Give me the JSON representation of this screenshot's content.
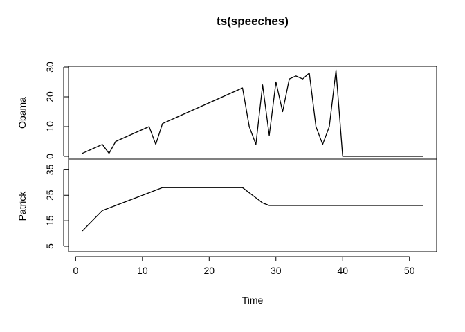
{
  "chart_data": {
    "type": "line",
    "title": "ts(speeches)",
    "xlabel": "Time",
    "xlim": [
      1,
      52
    ],
    "x_ticks": [
      0,
      10,
      20,
      30,
      40,
      50
    ],
    "x": [
      1,
      4,
      5,
      6,
      11,
      12,
      13,
      25,
      26,
      27,
      28,
      29,
      30,
      31,
      32,
      33,
      34,
      35,
      36,
      37,
      38,
      39,
      40,
      41,
      42,
      43,
      44,
      45,
      46,
      47,
      51,
      52
    ],
    "series": [
      {
        "name": "Obama",
        "ylim": [
          0,
          30
        ],
        "y_ticks": [
          0,
          10,
          20,
          30
        ],
        "values": [
          1,
          4,
          1,
          5,
          10,
          4,
          11,
          23,
          10,
          4,
          24,
          7,
          25,
          15,
          26,
          27,
          26,
          28,
          10,
          4,
          10,
          29,
          0,
          0,
          0,
          0,
          0,
          0,
          0,
          0,
          0,
          0
        ]
      },
      {
        "name": "Patrick",
        "ylim": [
          5,
          37
        ],
        "y_ticks": [
          5,
          15,
          25,
          35
        ],
        "values": [
          11,
          19,
          20,
          21,
          26,
          27,
          28,
          28,
          26,
          24,
          22,
          21,
          21,
          21,
          21,
          21,
          21,
          21,
          21,
          21,
          21,
          21,
          21,
          21,
          21,
          21,
          21,
          21,
          21,
          21,
          21,
          21
        ]
      }
    ]
  }
}
